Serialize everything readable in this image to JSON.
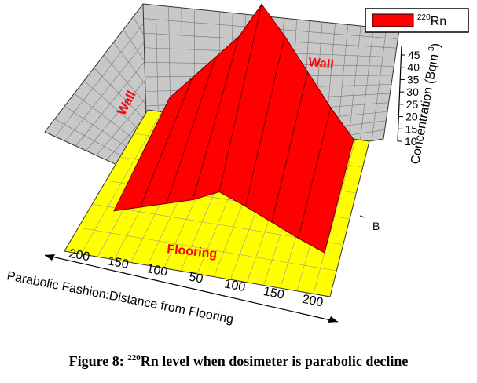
{
  "chart_data": {
    "type": "area",
    "title": "",
    "legend": {
      "position": "top-right",
      "isotope_mass": "220",
      "element": "Rn",
      "color": "#ff0000"
    },
    "x": {
      "label": "Parabolic Fashion:Distance from Flooring",
      "ticks": [
        200,
        150,
        100,
        50,
        100,
        150,
        200
      ]
    },
    "y": {
      "label": "Concentration (Bqm",
      "label_exp": "-3",
      "label_close": ")",
      "ticks": [
        10,
        15,
        20,
        25,
        30,
        35,
        40,
        45
      ],
      "ylim": [
        10,
        45
      ]
    },
    "depth_axis": {
      "ticks": [
        "B"
      ]
    },
    "series": [
      {
        "values": [
          18,
          24,
          30,
          36,
          45,
          38,
          30,
          22,
          15
        ]
      }
    ],
    "annotations": {
      "left_wall": "Wall",
      "back_wall": "Wall",
      "floor": "Flooring"
    },
    "colors": {
      "surface": "#ff0000",
      "floor": "#ffff00",
      "walls": "#c8c8c8",
      "annotation_text": "#ff0000"
    }
  },
  "caption": {
    "prefix": "Figure 8: ",
    "isotope_mass": "220",
    "text": "Rn level when dosimeter is parabolic decline"
  }
}
